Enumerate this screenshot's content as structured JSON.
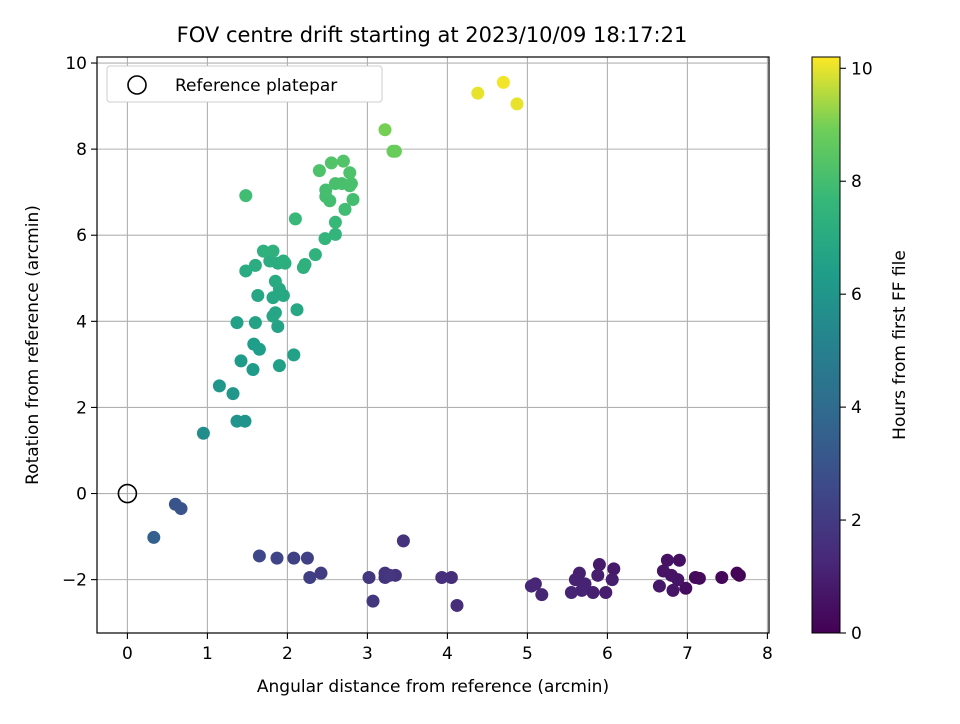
{
  "chart_data": {
    "type": "scatter",
    "title": "FOV centre drift starting at 2023/10/09 18:17:21",
    "xlabel": "Angular distance from reference (arcmin)",
    "ylabel": "Rotation from reference (arcmin)",
    "xlim": [
      -0.38,
      8.02
    ],
    "ylim": [
      -3.24,
      10.14
    ],
    "xticks": [
      0,
      1,
      2,
      3,
      4,
      5,
      6,
      7,
      8
    ],
    "yticks": [
      -2,
      0,
      2,
      4,
      6,
      8,
      10
    ],
    "xtick_labels": [
      "0",
      "1",
      "2",
      "3",
      "4",
      "5",
      "6",
      "7",
      "8"
    ],
    "ytick_labels": [
      "−2",
      "0",
      "2",
      "4",
      "6",
      "8",
      "10"
    ],
    "grid": true,
    "legend": {
      "placement": "top-left",
      "entries": [
        "Reference platepar"
      ]
    },
    "reference_point": {
      "x": 0,
      "y": 0
    },
    "colorbar": {
      "label": "Hours from first FF file",
      "range": [
        0,
        10.2
      ],
      "ticks": [
        0,
        2,
        4,
        6,
        8,
        10
      ],
      "tick_labels": [
        "0",
        "2",
        "4",
        "6",
        "8",
        "10"
      ],
      "colormap": "viridis"
    },
    "points": [
      {
        "x": 7.62,
        "y": -1.85,
        "t": 0.1
      },
      {
        "x": 7.65,
        "y": -1.9,
        "t": 0.12
      },
      {
        "x": 7.43,
        "y": -1.95,
        "t": 0.2
      },
      {
        "x": 7.1,
        "y": -1.95,
        "t": 0.3
      },
      {
        "x": 7.15,
        "y": -1.97,
        "t": 0.3
      },
      {
        "x": 6.98,
        "y": -2.2,
        "t": 0.4
      },
      {
        "x": 6.9,
        "y": -1.55,
        "t": 0.5
      },
      {
        "x": 6.75,
        "y": -1.55,
        "t": 0.55
      },
      {
        "x": 6.7,
        "y": -1.8,
        "t": 0.6
      },
      {
        "x": 6.8,
        "y": -1.9,
        "t": 0.6
      },
      {
        "x": 6.88,
        "y": -2.0,
        "t": 0.62
      },
      {
        "x": 6.82,
        "y": -2.25,
        "t": 0.65
      },
      {
        "x": 6.65,
        "y": -2.15,
        "t": 0.7
      },
      {
        "x": 6.08,
        "y": -1.75,
        "t": 0.8
      },
      {
        "x": 5.9,
        "y": -1.65,
        "t": 0.85
      },
      {
        "x": 5.88,
        "y": -1.9,
        "t": 0.9
      },
      {
        "x": 6.06,
        "y": -2.0,
        "t": 0.9
      },
      {
        "x": 5.98,
        "y": -2.3,
        "t": 0.95
      },
      {
        "x": 5.82,
        "y": -2.3,
        "t": 1.0
      },
      {
        "x": 5.65,
        "y": -1.85,
        "t": 1.0
      },
      {
        "x": 5.6,
        "y": -2.0,
        "t": 1.05
      },
      {
        "x": 5.72,
        "y": -2.1,
        "t": 1.1
      },
      {
        "x": 5.68,
        "y": -2.25,
        "t": 1.1
      },
      {
        "x": 5.55,
        "y": -2.3,
        "t": 1.15
      },
      {
        "x": 5.18,
        "y": -2.35,
        "t": 1.2
      },
      {
        "x": 5.1,
        "y": -2.1,
        "t": 1.2
      },
      {
        "x": 5.05,
        "y": -2.15,
        "t": 1.25
      },
      {
        "x": 4.12,
        "y": -2.6,
        "t": 1.5
      },
      {
        "x": 4.05,
        "y": -1.95,
        "t": 1.5
      },
      {
        "x": 3.93,
        "y": -1.95,
        "t": 1.55
      },
      {
        "x": 3.45,
        "y": -1.1,
        "t": 1.7
      },
      {
        "x": 3.35,
        "y": -1.9,
        "t": 1.7
      },
      {
        "x": 3.22,
        "y": -1.85,
        "t": 1.75
      },
      {
        "x": 3.22,
        "y": -1.95,
        "t": 1.75
      },
      {
        "x": 3.28,
        "y": -1.9,
        "t": 1.8
      },
      {
        "x": 3.02,
        "y": -1.95,
        "t": 1.8
      },
      {
        "x": 3.07,
        "y": -2.5,
        "t": 1.85
      },
      {
        "x": 2.42,
        "y": -1.85,
        "t": 2.1
      },
      {
        "x": 2.28,
        "y": -1.95,
        "t": 2.15
      },
      {
        "x": 2.25,
        "y": -1.5,
        "t": 2.2
      },
      {
        "x": 2.08,
        "y": -1.5,
        "t": 2.25
      },
      {
        "x": 1.87,
        "y": -1.5,
        "t": 2.4
      },
      {
        "x": 1.65,
        "y": -1.45,
        "t": 2.5
      },
      {
        "x": 0.33,
        "y": -1.02,
        "t": 3.5
      },
      {
        "x": 0.6,
        "y": -0.25,
        "t": 3.0
      },
      {
        "x": 0.67,
        "y": -0.35,
        "t": 3.0
      },
      {
        "x": 0.95,
        "y": 1.4,
        "t": 5.6
      },
      {
        "x": 1.15,
        "y": 2.5,
        "t": 6.0
      },
      {
        "x": 1.32,
        "y": 2.32,
        "t": 6.0
      },
      {
        "x": 1.37,
        "y": 1.68,
        "t": 5.9
      },
      {
        "x": 1.47,
        "y": 1.68,
        "t": 5.95
      },
      {
        "x": 1.42,
        "y": 3.08,
        "t": 6.3
      },
      {
        "x": 1.57,
        "y": 2.88,
        "t": 6.3
      },
      {
        "x": 1.58,
        "y": 3.47,
        "t": 6.4
      },
      {
        "x": 1.65,
        "y": 3.35,
        "t": 6.4
      },
      {
        "x": 1.37,
        "y": 3.97,
        "t": 6.55
      },
      {
        "x": 1.6,
        "y": 3.97,
        "t": 6.6
      },
      {
        "x": 1.9,
        "y": 2.97,
        "t": 6.5
      },
      {
        "x": 2.08,
        "y": 3.22,
        "t": 6.55
      },
      {
        "x": 1.88,
        "y": 3.88,
        "t": 6.6
      },
      {
        "x": 1.63,
        "y": 4.6,
        "t": 6.8
      },
      {
        "x": 1.82,
        "y": 4.55,
        "t": 6.85
      },
      {
        "x": 1.85,
        "y": 4.2,
        "t": 6.8
      },
      {
        "x": 1.82,
        "y": 4.12,
        "t": 6.8
      },
      {
        "x": 1.9,
        "y": 4.75,
        "t": 6.9
      },
      {
        "x": 1.95,
        "y": 4.6,
        "t": 6.9
      },
      {
        "x": 2.12,
        "y": 4.27,
        "t": 6.85
      },
      {
        "x": 1.85,
        "y": 4.93,
        "t": 7.0
      },
      {
        "x": 1.78,
        "y": 5.4,
        "t": 7.1
      },
      {
        "x": 1.88,
        "y": 5.35,
        "t": 7.1
      },
      {
        "x": 1.95,
        "y": 5.4,
        "t": 7.15
      },
      {
        "x": 1.6,
        "y": 5.3,
        "t": 7.1
      },
      {
        "x": 1.48,
        "y": 5.17,
        "t": 7.05
      },
      {
        "x": 1.7,
        "y": 5.63,
        "t": 7.3
      },
      {
        "x": 1.82,
        "y": 5.63,
        "t": 7.3
      },
      {
        "x": 1.97,
        "y": 5.35,
        "t": 7.2
      },
      {
        "x": 2.2,
        "y": 5.25,
        "t": 7.3
      },
      {
        "x": 2.22,
        "y": 5.32,
        "t": 7.3
      },
      {
        "x": 2.35,
        "y": 5.55,
        "t": 7.4
      },
      {
        "x": 2.47,
        "y": 5.92,
        "t": 7.5
      },
      {
        "x": 2.6,
        "y": 6.02,
        "t": 7.5
      },
      {
        "x": 2.6,
        "y": 6.3,
        "t": 7.7
      },
      {
        "x": 2.1,
        "y": 6.38,
        "t": 7.7
      },
      {
        "x": 1.48,
        "y": 6.92,
        "t": 7.9
      },
      {
        "x": 2.48,
        "y": 6.9,
        "t": 8.0
      },
      {
        "x": 2.53,
        "y": 6.8,
        "t": 8.0
      },
      {
        "x": 2.72,
        "y": 6.6,
        "t": 7.9
      },
      {
        "x": 2.82,
        "y": 6.83,
        "t": 8.0
      },
      {
        "x": 2.48,
        "y": 7.05,
        "t": 8.05
      },
      {
        "x": 2.6,
        "y": 7.2,
        "t": 8.1
      },
      {
        "x": 2.68,
        "y": 7.2,
        "t": 8.1
      },
      {
        "x": 2.78,
        "y": 7.15,
        "t": 8.1
      },
      {
        "x": 2.8,
        "y": 7.2,
        "t": 8.15
      },
      {
        "x": 2.78,
        "y": 7.45,
        "t": 8.2
      },
      {
        "x": 2.4,
        "y": 7.5,
        "t": 8.2
      },
      {
        "x": 2.55,
        "y": 7.68,
        "t": 8.3
      },
      {
        "x": 2.7,
        "y": 7.72,
        "t": 8.3
      },
      {
        "x": 3.32,
        "y": 7.95,
        "t": 8.8
      },
      {
        "x": 3.35,
        "y": 7.95,
        "t": 8.8
      },
      {
        "x": 3.22,
        "y": 8.45,
        "t": 9.0
      },
      {
        "x": 4.38,
        "y": 9.3,
        "t": 10.0
      },
      {
        "x": 4.7,
        "y": 9.55,
        "t": 10.1
      },
      {
        "x": 4.87,
        "y": 9.05,
        "t": 10.0
      }
    ]
  }
}
